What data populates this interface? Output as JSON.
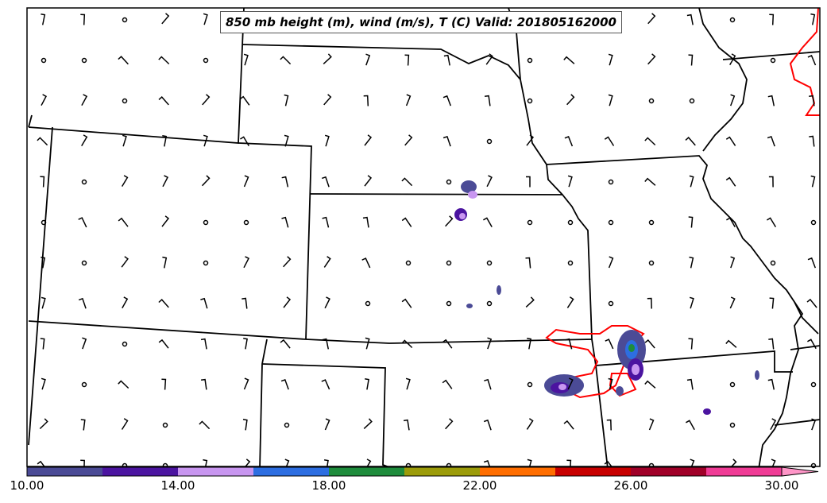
{
  "title": "850 mb height (m), wind (m/s), T (C) Valid: 201805162000",
  "colorbar": {
    "colors": [
      "#4b4b96",
      "#4b14a0",
      "#c896f0",
      "#2d6ee1",
      "#1e8c3c",
      "#9c9c0a",
      "#ff6e00",
      "#c80000",
      "#a00028",
      "#f03c96"
    ],
    "extend_color": "#ff96c8",
    "ticks": [
      "10.00",
      "14.00",
      "18.00",
      "22.00",
      "26.00",
      "30.00"
    ]
  },
  "legend_colors": {
    "contour_temperature": "#ff0000",
    "borders": "#000000"
  },
  "wind_field": {
    "note_calm_symbol": "circle",
    "grid_spacing_deg": 1
  }
}
